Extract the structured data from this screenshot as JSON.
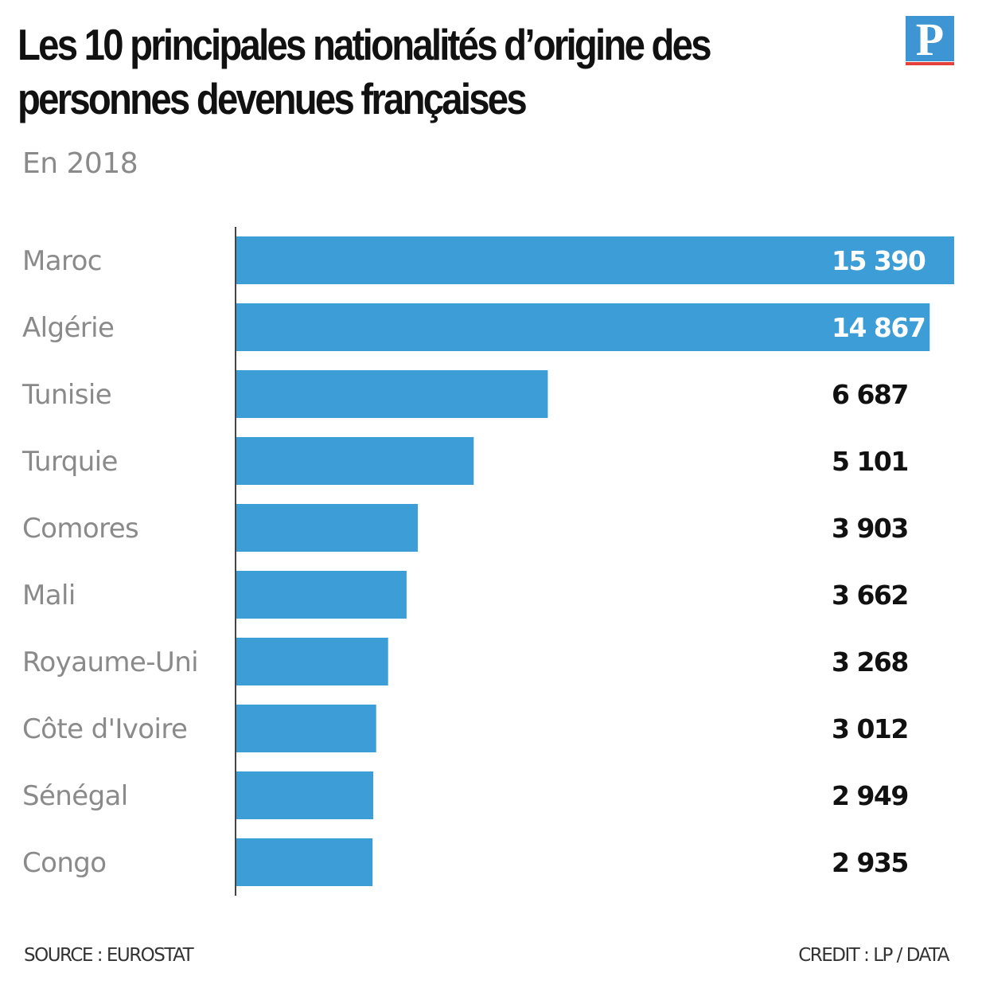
{
  "header": {
    "title": "Les 10 principales nationalités d’origine des personnes devenues françaises",
    "subtitle": "En 2018",
    "logo_text": "P"
  },
  "footer": {
    "source": "SOURCE : EUROSTAT",
    "credit": "CREDIT : LP / DATA"
  },
  "colors": {
    "bar": "#3d9dd6",
    "label_inside": "#ffffff",
    "label_outside": "#111111",
    "category_text": "#8a8a8a",
    "axis": "#444444",
    "logo_blue": "#3d95d3",
    "logo_red": "#e6403a"
  },
  "chart_data": {
    "type": "bar",
    "orientation": "horizontal",
    "title": "Les 10 principales nationalités d’origine des personnes devenues françaises",
    "subtitle": "En 2018",
    "xlabel": "",
    "ylabel": "",
    "xlim": [
      0,
      15390
    ],
    "grid": false,
    "legend": "none",
    "categories": [
      "Maroc",
      "Algérie",
      "Tunisie",
      "Turquie",
      "Comores",
      "Mali",
      "Royaume-Uni",
      "Côte d'Ivoire",
      "Sénégal",
      "Congo"
    ],
    "values": [
      15390,
      14867,
      6687,
      5101,
      3903,
      3662,
      3268,
      3012,
      2949,
      2935
    ],
    "value_labels": [
      "15 390",
      "14 867",
      "6 687",
      "5 101",
      "3 903",
      "3 662",
      "3 268",
      "3 012",
      "2 949",
      "2 935"
    ],
    "labels_inside_bar": [
      true,
      true,
      false,
      false,
      false,
      false,
      false,
      false,
      false,
      false
    ]
  }
}
